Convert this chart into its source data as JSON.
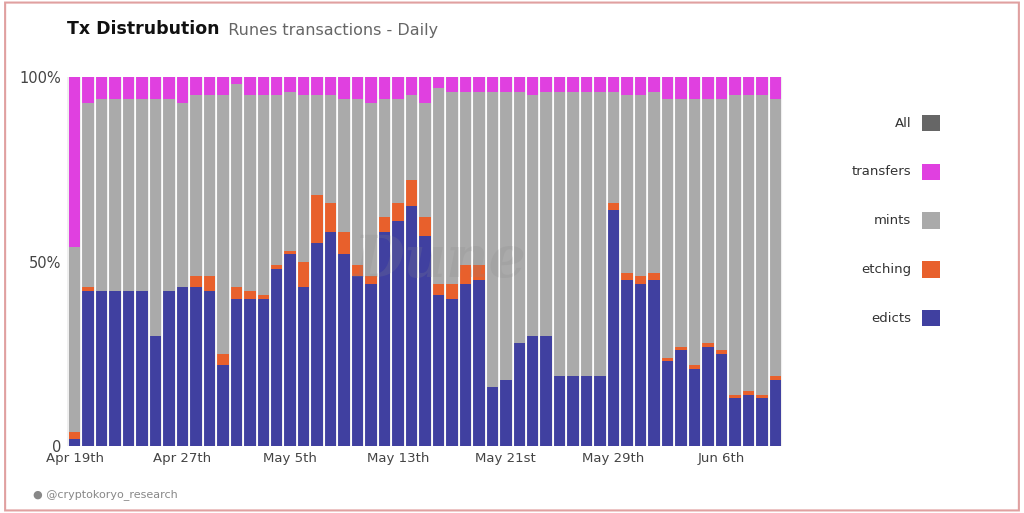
{
  "title_bold": "Tx Distrubution",
  "title_regular": "  Runes transactions - Daily",
  "background_color": "#ffffff",
  "plot_background": "#efefef",
  "colors": {
    "edicts": "#4040a0",
    "etching": "#e8602c",
    "mints": "#aaaaaa",
    "transfers": "#e040e0"
  },
  "x_tick_labels": [
    "Apr 19th",
    "Apr 27th",
    "May 5th",
    "May 13th",
    "May 21st",
    "May 29th",
    "Jun 6th"
  ],
  "x_tick_positions": [
    0,
    8,
    16,
    24,
    32,
    40,
    48
  ],
  "watermark": "Dune",
  "footer": "@cryptokoryo_research",
  "dates_count": 53,
  "edicts": [
    2,
    42,
    42,
    42,
    42,
    42,
    30,
    42,
    43,
    43,
    42,
    22,
    40,
    40,
    40,
    48,
    52,
    43,
    55,
    58,
    52,
    46,
    44,
    58,
    61,
    65,
    57,
    41,
    40,
    44,
    45,
    16,
    18,
    28,
    30,
    30,
    19,
    19,
    19,
    19,
    64,
    45,
    44,
    45,
    23,
    26,
    21,
    27,
    25,
    13,
    14,
    13,
    18
  ],
  "etching": [
    2,
    1,
    0,
    0,
    0,
    0,
    0,
    0,
    0,
    3,
    4,
    3,
    3,
    2,
    1,
    1,
    1,
    7,
    13,
    8,
    6,
    3,
    2,
    4,
    5,
    7,
    5,
    3,
    4,
    5,
    4,
    0,
    0,
    0,
    0,
    0,
    0,
    0,
    0,
    0,
    2,
    2,
    2,
    2,
    1,
    1,
    1,
    1,
    1,
    1,
    1,
    1,
    1
  ],
  "mints": [
    50,
    50,
    52,
    52,
    52,
    52,
    64,
    52,
    50,
    49,
    49,
    70,
    55,
    53,
    54,
    46,
    43,
    45,
    27,
    29,
    36,
    45,
    47,
    32,
    28,
    23,
    31,
    53,
    52,
    47,
    47,
    80,
    78,
    68,
    65,
    66,
    77,
    77,
    77,
    77,
    30,
    48,
    49,
    49,
    70,
    67,
    72,
    66,
    68,
    81,
    80,
    81,
    75
  ],
  "transfers": [
    46,
    7,
    6,
    6,
    6,
    6,
    6,
    6,
    7,
    5,
    5,
    5,
    2,
    5,
    5,
    5,
    4,
    5,
    5,
    5,
    6,
    6,
    7,
    6,
    6,
    5,
    7,
    3,
    4,
    4,
    4,
    4,
    4,
    4,
    5,
    4,
    4,
    4,
    4,
    4,
    4,
    5,
    5,
    4,
    6,
    6,
    6,
    6,
    6,
    5,
    5,
    5,
    6
  ],
  "legend_items": [
    {
      "label": "All",
      "color": "#666666"
    },
    {
      "label": "transfers",
      "color": "#e040e0"
    },
    {
      "label": "mints",
      "color": "#aaaaaa"
    },
    {
      "label": "etching",
      "color": "#e8602c"
    },
    {
      "label": "edicts",
      "color": "#4040a0"
    }
  ]
}
